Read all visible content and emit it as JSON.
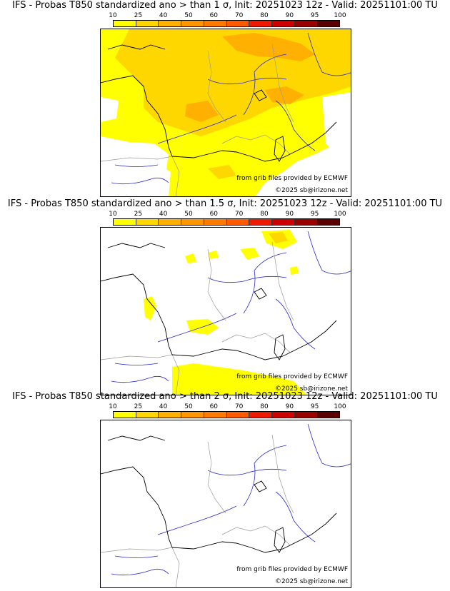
{
  "colorbar": {
    "ticks": [
      "10",
      "25",
      "40",
      "50",
      "60",
      "70",
      "80",
      "90",
      "95",
      "100"
    ],
    "colors": [
      "#ffff00",
      "#ffd700",
      "#ffb000",
      "#ff9500",
      "#ff7a00",
      "#ff5a00",
      "#ee1a00",
      "#cc0000",
      "#990000",
      "#5a0000"
    ]
  },
  "colors": {
    "no_probability": "#ffffff",
    "coastline": "#000000",
    "rivers": "#2a2acd",
    "borders": "#9a9a9a"
  },
  "panels": [
    {
      "title": "IFS - Probas T850  standardized ano > than 1 σ, Init: 20251023 12z - Valid: 20251101:00 TU",
      "source_text": "from grib files provided by ECMWF",
      "copyright": "©2025 sb@irizone.net",
      "coverage": "broad"
    },
    {
      "title": "IFS - Probas T850  standardized ano > than 1.5 σ, Init: 20251023 12z - Valid: 20251101:00 TU",
      "source_text": "from grib files provided by ECMWF",
      "copyright": "©2025 sb@irizone.net",
      "coverage": "patches"
    },
    {
      "title": "IFS - Probas T850  standardized ano > than 2 σ, Init: 20251023 12z - Valid: 20251101:00 TU",
      "source_text": "from grib files provided by ECMWF",
      "copyright": "©2025 sb@irizone.net",
      "coverage": "none"
    }
  ]
}
